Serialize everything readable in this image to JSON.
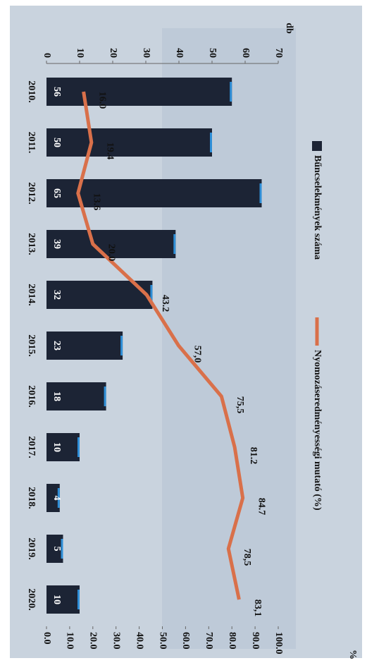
{
  "chart_data": {
    "type": "bar-line",
    "y_axis_label": "db",
    "y2_axis_label": "%",
    "categories": [
      "2010.",
      "2011.",
      "2012.",
      "2013.",
      "2014.",
      "2015.",
      "2016.",
      "2017.",
      "2018.",
      "2019.",
      "2020."
    ],
    "series": [
      {
        "name": "Bűncselekmények száma",
        "type": "bar",
        "color": "#1c2435",
        "values": [
          56,
          50,
          65,
          39,
          32,
          23,
          18,
          10,
          4,
          5,
          10
        ]
      },
      {
        "name": "Nyomozáseredményességi mutató (%)",
        "type": "line",
        "axis": "y2",
        "color": "#d9704a",
        "values": [
          16.0,
          19.4,
          13.6,
          20.0,
          43.2,
          57.0,
          75.5,
          81.2,
          84.7,
          78.5,
          83.1
        ],
        "value_labels": [
          "16.0",
          "19.4",
          "13.6",
          "20.0",
          "43.2",
          "57,0",
          "75,5",
          "81.2",
          "84.7",
          "78,5",
          "83,1"
        ]
      }
    ],
    "ylim": [
      0,
      70
    ],
    "yticks": [
      0,
      10,
      20,
      30,
      40,
      50,
      60,
      70
    ],
    "y2lim": [
      0,
      100
    ],
    "y2ticks": [
      {
        "value": 0,
        "label": "0.0"
      },
      {
        "value": 10,
        "label": "10.0"
      },
      {
        "value": 20,
        "label": "20.0"
      },
      {
        "value": 30,
        "label": "30.0"
      },
      {
        "value": 40,
        "label": "40.0"
      },
      {
        "value": 50,
        "label": "50.0"
      },
      {
        "value": 60,
        "label": "60.0"
      },
      {
        "value": 70,
        "label": "70.0"
      },
      {
        "value": 80,
        "label": "80.0"
      },
      {
        "value": 90,
        "label": "90.0"
      },
      {
        "value": 100,
        "label": "100.0"
      }
    ]
  }
}
